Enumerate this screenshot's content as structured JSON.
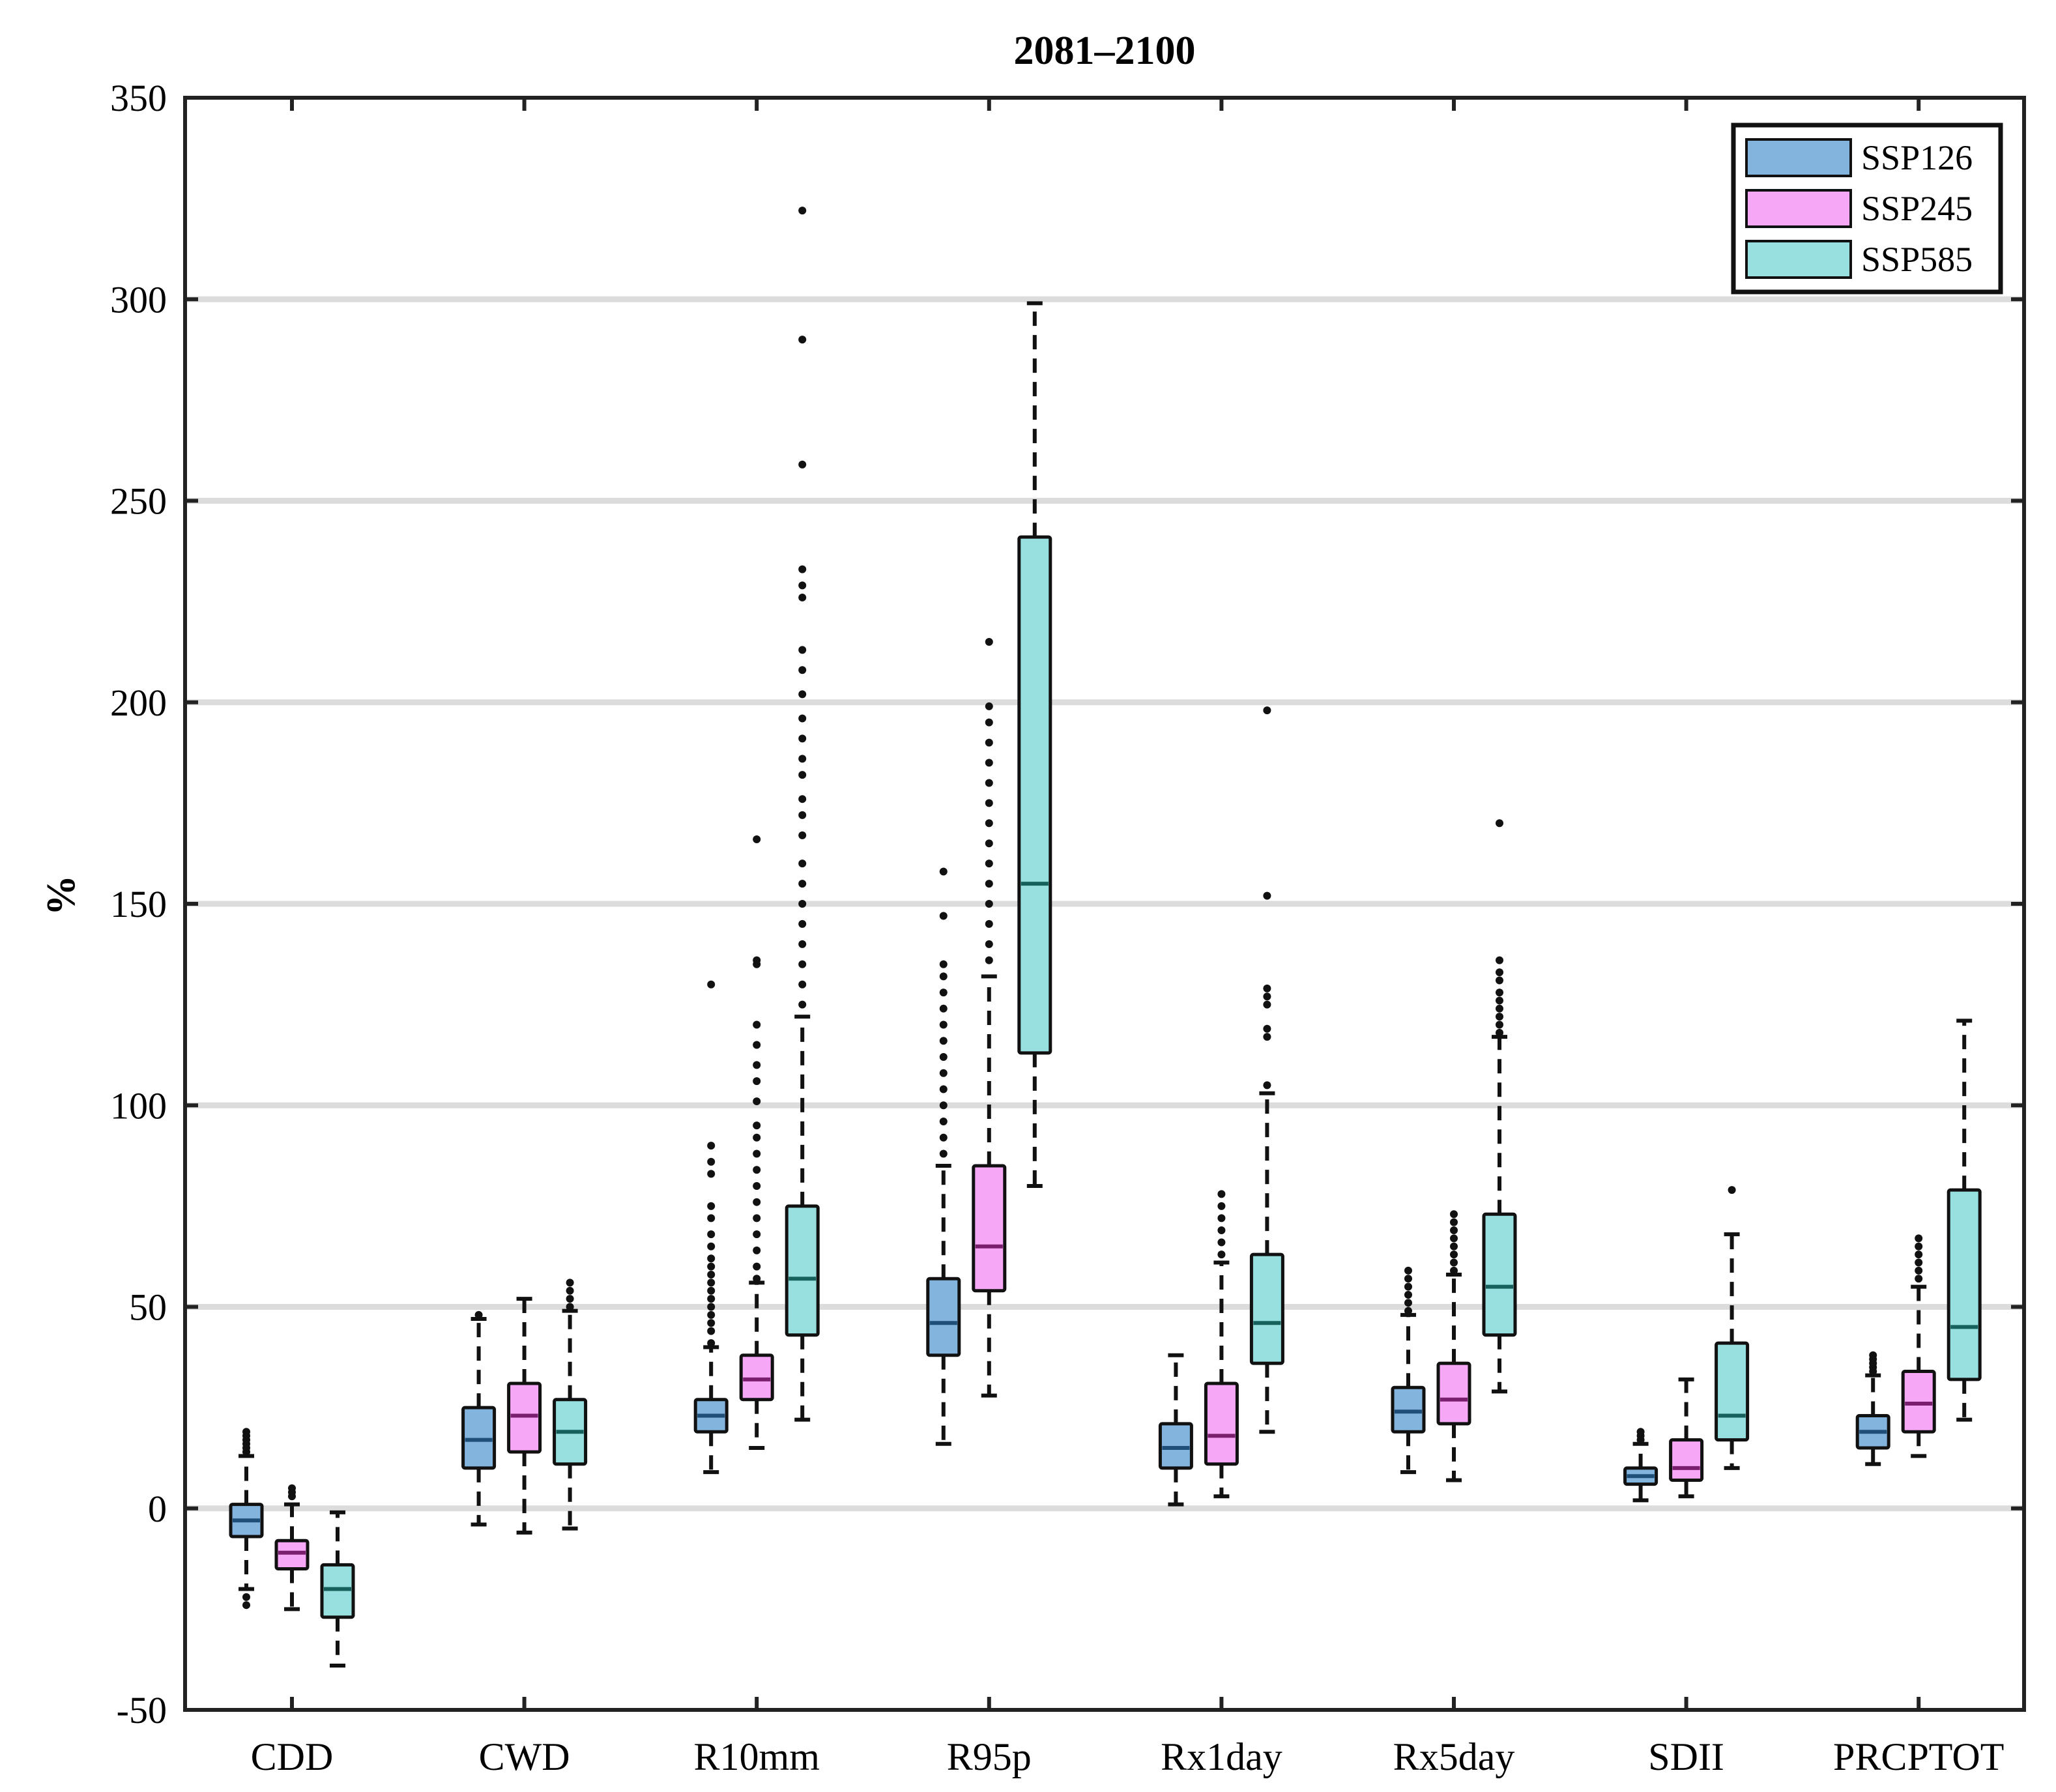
{
  "chart_data": {
    "type": "boxplot",
    "title": "2081–2100",
    "xlabel": "",
    "ylabel": "%",
    "ylim": [
      -50,
      350
    ],
    "yticks": [
      -50,
      0,
      50,
      100,
      150,
      200,
      250,
      300,
      350
    ],
    "grid": "horizontal",
    "legend_position": "top-right",
    "categories": [
      "CDD",
      "CWD",
      "R10mm",
      "R95p",
      "Rx1day",
      "Rx5day",
      "SDII",
      "PRCPTOT"
    ],
    "series": [
      {
        "name": "SSP126",
        "color": "#82b4dd",
        "median_color": "#1f4e79",
        "boxes": [
          {
            "whisker_low": -20,
            "q1": -7,
            "median": -3,
            "q3": 1,
            "whisker_high": 13,
            "outliers": [
              -24,
              -22,
              14,
              15,
              16,
              17,
              18,
              19
            ]
          },
          {
            "whisker_low": -4,
            "q1": 10,
            "median": 17,
            "q3": 25,
            "whisker_high": 47,
            "outliers": [
              48
            ]
          },
          {
            "whisker_low": 9,
            "q1": 19,
            "median": 23,
            "q3": 27,
            "whisker_high": 40,
            "outliers": [
              41,
              44,
              46,
              48,
              50,
              52,
              54,
              56,
              58,
              60,
              62,
              65,
              68,
              72,
              75,
              83,
              86,
              90,
              130
            ]
          },
          {
            "whisker_low": 16,
            "q1": 38,
            "median": 46,
            "q3": 57,
            "whisker_high": 85,
            "outliers": [
              88,
              92,
              96,
              100,
              104,
              108,
              112,
              116,
              120,
              124,
              128,
              132,
              135,
              147,
              158
            ]
          },
          {
            "whisker_low": 1,
            "q1": 10,
            "median": 15,
            "q3": 21,
            "whisker_high": 38,
            "outliers": []
          },
          {
            "whisker_low": 9,
            "q1": 19,
            "median": 24,
            "q3": 30,
            "whisker_high": 48,
            "outliers": [
              49,
              51,
              53,
              55,
              57,
              59
            ]
          },
          {
            "whisker_low": 2,
            "q1": 6,
            "median": 8,
            "q3": 10,
            "whisker_high": 16,
            "outliers": [
              17,
              18,
              19
            ]
          },
          {
            "whisker_low": 11,
            "q1": 15,
            "median": 19,
            "q3": 23,
            "whisker_high": 33,
            "outliers": [
              34,
              35,
              36,
              37,
              38
            ]
          }
        ]
      },
      {
        "name": "SSP245",
        "color": "#f6a8f6",
        "median_color": "#7a1f6e",
        "boxes": [
          {
            "whisker_low": -25,
            "q1": -15,
            "median": -11,
            "q3": -8,
            "whisker_high": 1,
            "outliers": [
              3,
              4,
              5
            ]
          },
          {
            "whisker_low": -6,
            "q1": 14,
            "median": 23,
            "q3": 31,
            "whisker_high": 52,
            "outliers": []
          },
          {
            "whisker_low": 15,
            "q1": 27,
            "median": 32,
            "q3": 38,
            "whisker_high": 56,
            "outliers": [
              57,
              60,
              64,
              68,
              72,
              76,
              80,
              84,
              88,
              92,
              95,
              101,
              106,
              110,
              115,
              120,
              135,
              136,
              166
            ]
          },
          {
            "whisker_low": 28,
            "q1": 54,
            "median": 65,
            "q3": 85,
            "whisker_high": 132,
            "outliers": [
              136,
              140,
              145,
              150,
              155,
              160,
              165,
              170,
              175,
              180,
              185,
              190,
              195,
              199,
              215
            ]
          },
          {
            "whisker_low": 3,
            "q1": 11,
            "median": 18,
            "q3": 31,
            "whisker_high": 61,
            "outliers": [
              63,
              66,
              69,
              72,
              75,
              78
            ]
          },
          {
            "whisker_low": 7,
            "q1": 21,
            "median": 27,
            "q3": 36,
            "whisker_high": 58,
            "outliers": [
              59,
              61,
              63,
              65,
              67,
              69,
              71,
              73
            ]
          },
          {
            "whisker_low": 3,
            "q1": 7,
            "median": 10,
            "q3": 17,
            "whisker_high": 32,
            "outliers": []
          },
          {
            "whisker_low": 13,
            "q1": 19,
            "median": 26,
            "q3": 34,
            "whisker_high": 55,
            "outliers": [
              57,
              59,
              61,
              63,
              65,
              67
            ]
          }
        ]
      },
      {
        "name": "SSP585",
        "color": "#98dfdf",
        "median_color": "#16615c",
        "boxes": [
          {
            "whisker_low": -39,
            "q1": -27,
            "median": -20,
            "q3": -14,
            "whisker_high": -1,
            "outliers": []
          },
          {
            "whisker_low": -5,
            "q1": 11,
            "median": 19,
            "q3": 27,
            "whisker_high": 49,
            "outliers": [
              50,
              52,
              54,
              56
            ]
          },
          {
            "whisker_low": 22,
            "q1": 43,
            "median": 57,
            "q3": 75,
            "whisker_high": 122,
            "outliers": [
              125,
              130,
              135,
              140,
              145,
              150,
              155,
              160,
              167,
              172,
              176,
              182,
              186,
              191,
              196,
              202,
              208,
              213,
              226,
              229,
              233,
              259,
              290,
              322
            ]
          },
          {
            "whisker_low": 80,
            "q1": 113,
            "median": 155,
            "q3": 241,
            "whisker_high": 299,
            "outliers": []
          },
          {
            "whisker_low": 19,
            "q1": 36,
            "median": 46,
            "q3": 63,
            "whisker_high": 103,
            "outliers": [
              105,
              117,
              119,
              125,
              127,
              129,
              152,
              198
            ]
          },
          {
            "whisker_low": 29,
            "q1": 43,
            "median": 55,
            "q3": 73,
            "whisker_high": 117,
            "outliers": [
              118,
              120,
              122,
              124,
              126,
              128,
              131,
              133,
              136,
              170
            ]
          },
          {
            "whisker_low": 10,
            "q1": 17,
            "median": 23,
            "q3": 41,
            "whisker_high": 68,
            "outliers": [
              79
            ]
          },
          {
            "whisker_low": 22,
            "q1": 32,
            "median": 45,
            "q3": 79,
            "whisker_high": 121,
            "outliers": []
          }
        ]
      }
    ]
  }
}
